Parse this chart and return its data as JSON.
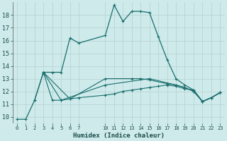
{
  "xlabel": "Humidex (Indice chaleur)",
  "bg_color": "#ceeaea",
  "grid_color": "#b8d4d4",
  "line_color": "#1a6e6e",
  "xlim": [
    -0.5,
    23.5
  ],
  "ylim": [
    9.5,
    19.0
  ],
  "xtick_vals": [
    0,
    1,
    2,
    3,
    4,
    5,
    6,
    7,
    10,
    11,
    12,
    13,
    14,
    15,
    16,
    17,
    18,
    19,
    20,
    21,
    22,
    23
  ],
  "xtick_labels": [
    "0",
    "1",
    "2",
    "3",
    "4",
    "5",
    "6",
    "7",
    "10",
    "11",
    "12",
    "13",
    "14",
    "15",
    "16",
    "17",
    "18",
    "19",
    "20",
    "21",
    "22",
    "23"
  ],
  "ytick_vals": [
    10,
    11,
    12,
    13,
    14,
    15,
    16,
    17,
    18
  ],
  "series1": {
    "x": [
      0,
      1,
      2,
      3,
      4,
      5,
      6,
      7,
      10,
      11,
      12,
      13,
      14,
      15,
      16,
      17,
      18,
      19,
      20,
      21,
      22,
      23
    ],
    "y": [
      9.8,
      9.8,
      11.3,
      13.5,
      13.5,
      13.5,
      16.2,
      15.8,
      16.4,
      18.8,
      17.5,
      18.3,
      18.3,
      18.2,
      16.3,
      14.5,
      13.0,
      12.5,
      12.1,
      11.2,
      11.5,
      11.9
    ]
  },
  "series2": {
    "x": [
      2,
      3,
      4,
      5,
      6,
      7,
      10,
      11,
      12,
      13,
      14,
      15,
      16,
      17,
      18,
      19,
      20,
      21,
      22,
      23
    ],
    "y": [
      11.3,
      13.5,
      11.3,
      11.3,
      11.4,
      11.5,
      11.7,
      11.8,
      12.0,
      12.1,
      12.2,
      12.3,
      12.4,
      12.5,
      12.4,
      12.2,
      12.1,
      11.2,
      11.5,
      11.9
    ]
  },
  "series3": {
    "x": [
      3,
      6,
      10,
      13,
      14,
      15,
      17,
      18,
      19,
      20,
      21,
      22,
      23
    ],
    "y": [
      13.5,
      11.4,
      13.0,
      13.0,
      13.0,
      12.9,
      12.6,
      12.5,
      12.3,
      12.0,
      11.2,
      11.5,
      11.9
    ]
  },
  "series4": {
    "x": [
      3,
      5,
      10,
      15,
      18,
      19,
      20,
      21,
      22,
      23
    ],
    "y": [
      13.5,
      11.3,
      12.5,
      13.0,
      12.5,
      12.3,
      12.0,
      11.2,
      11.5,
      11.9
    ]
  }
}
